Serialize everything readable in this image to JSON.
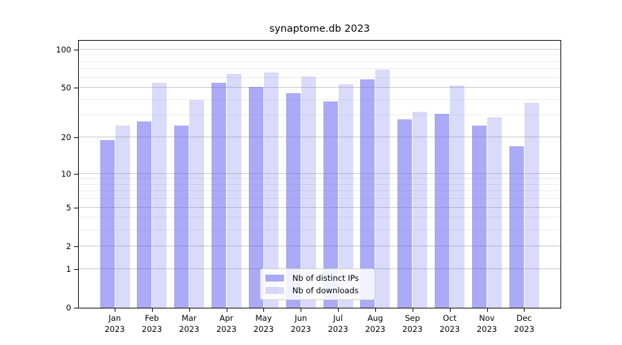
{
  "chart_data": {
    "type": "bar",
    "title": "synaptome.db 2023",
    "categories": [
      "Jan 2023",
      "Feb 2023",
      "Mar 2023",
      "Apr 2023",
      "May 2023",
      "Jun 2023",
      "Jul 2023",
      "Aug 2023",
      "Sep 2023",
      "Oct 2023",
      "Nov 2023",
      "Dec 2023"
    ],
    "series": [
      {
        "name": "Nb of distinct IPs",
        "color": "rgba(100,100,240,0.55)",
        "values": [
          19,
          27,
          25,
          55,
          51,
          45,
          39,
          58,
          28,
          31,
          25,
          17
        ]
      },
      {
        "name": "Nb of downloads",
        "color": "rgba(100,100,240,0.24)",
        "values": [
          25,
          55,
          40,
          64,
          66,
          61,
          53,
          69,
          32,
          52,
          29,
          38
        ]
      }
    ],
    "xlabel": "",
    "ylabel": "",
    "yscale": "log1p",
    "ylim": [
      0,
      117
    ],
    "y_major_ticks": [
      100,
      50,
      20,
      10,
      5,
      2,
      1,
      0
    ],
    "y_minor_gridlines": [
      3,
      4,
      6,
      7,
      8,
      9,
      30,
      40,
      60,
      70,
      80,
      90
    ],
    "grid": true,
    "legend_position": "lower center"
  },
  "colors": {
    "bar_base": "#6464f0",
    "grid_major": "#c9c9c9",
    "grid_minor": "#ececec",
    "spine": "#000000"
  }
}
